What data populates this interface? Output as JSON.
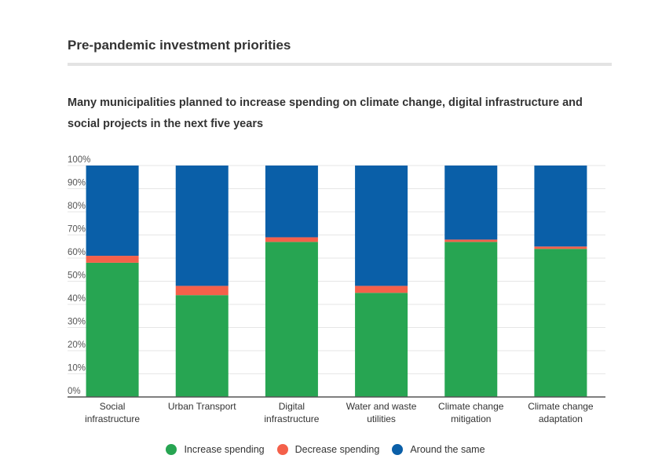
{
  "header": {
    "title": "Pre-pandemic investment priorities",
    "subtitle": "Many municipalities planned to increase spending on climate change, digital infrastructure and social projects in the next five years"
  },
  "colors": {
    "increase": "#27a552",
    "decrease": "#f4604a",
    "same": "#0a5fa8",
    "grid": "#e6e6e6",
    "axis": "#555555"
  },
  "chart_data": {
    "type": "bar",
    "stacked": true,
    "title": "Pre-pandemic investment priorities",
    "subtitle": "Many municipalities planned to increase spending on climate change, digital infrastructure and social projects in the next five years",
    "categories": [
      [
        "Social",
        "infrastructure"
      ],
      [
        "Urban Transport"
      ],
      [
        "Digital",
        "infrastructure"
      ],
      [
        "Water and waste",
        "utilities"
      ],
      [
        "Climate change",
        "mitigation"
      ],
      [
        "Climate change",
        "adaptation"
      ]
    ],
    "series": [
      {
        "name": "Increase spending",
        "color": "#27a552",
        "values": [
          58,
          44,
          67,
          45,
          67,
          64
        ]
      },
      {
        "name": "Decrease spending",
        "color": "#f4604a",
        "values": [
          3,
          4,
          2,
          3,
          1,
          1
        ]
      },
      {
        "name": "Around the same",
        "color": "#0a5fa8",
        "values": [
          39,
          52,
          31,
          52,
          32,
          35
        ]
      }
    ],
    "ylim": [
      0,
      100
    ],
    "yticks": [
      "0%",
      "10%",
      "20%",
      "30%",
      "40%",
      "50%",
      "60%",
      "70%",
      "80%",
      "90%",
      "100%"
    ],
    "grid": true,
    "legend": "bottom-center"
  }
}
